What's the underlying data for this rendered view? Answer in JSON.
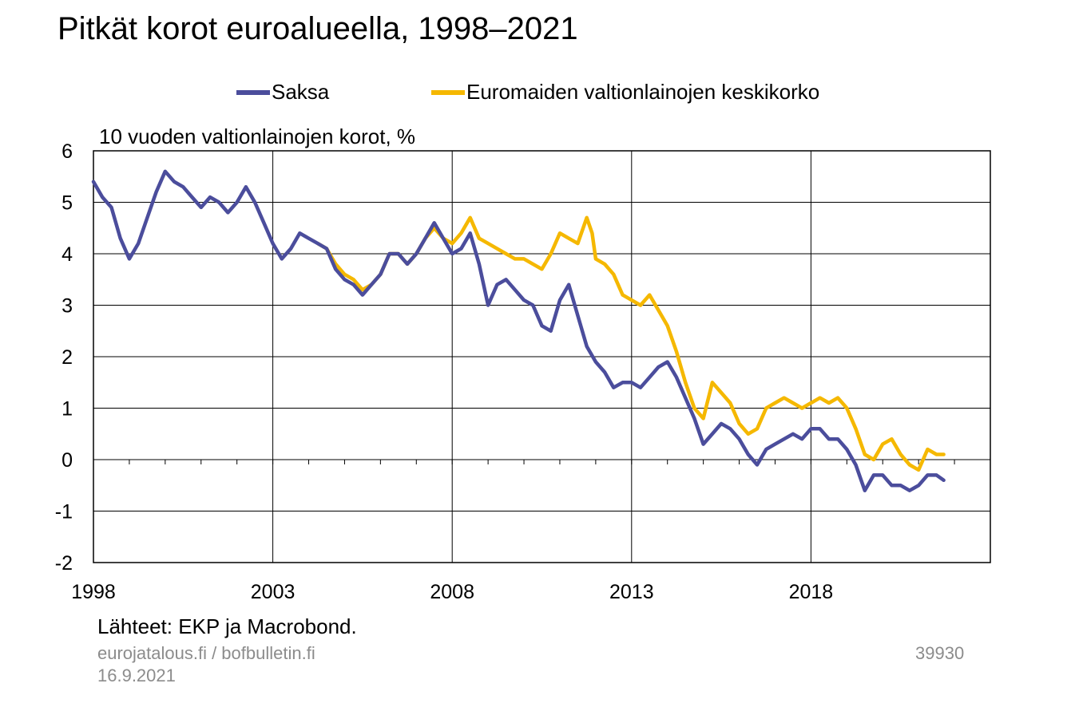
{
  "title": "Pitkät korot euroalueella, 1998–2021",
  "unit_label": "10 vuoden valtionlainojen korot, %",
  "source": "Lähteet: EKP ja Macrobond.",
  "footer": {
    "site": "eurojatalous.fi / bofbulletin.fi",
    "date": "16.9.2021",
    "id": "39930"
  },
  "colors": {
    "saksa": "#4b4d9c",
    "euro": "#f5b800",
    "grid": "#000000"
  },
  "chart_data": {
    "type": "line",
    "title": "Pitkät korot euroalueella, 1998–2021",
    "ylabel": "10 vuoden valtionlainojen korot, %",
    "xlim": [
      1998.0,
      2023.0
    ],
    "ylim": [
      -2,
      6
    ],
    "yticks": [
      "6",
      "5",
      "4",
      "3",
      "2",
      "1",
      "0",
      "-1",
      "-2"
    ],
    "xticks": [
      "1998",
      "2003",
      "2008",
      "2013",
      "2018"
    ],
    "grid": true,
    "legend_position": "top",
    "series": [
      {
        "name": "Saksa",
        "color": "#4b4d9c",
        "x": [
          1998.0,
          1998.25,
          1998.5,
          1998.75,
          1999.0,
          1999.25,
          1999.5,
          1999.75,
          2000.0,
          2000.25,
          2000.5,
          2000.75,
          2001.0,
          2001.25,
          2001.5,
          2001.75,
          2002.0,
          2002.25,
          2002.5,
          2002.75,
          2003.0,
          2003.25,
          2003.5,
          2003.75,
          2004.0,
          2004.25,
          2004.5,
          2004.75,
          2005.0,
          2005.25,
          2005.5,
          2005.75,
          2006.0,
          2006.25,
          2006.5,
          2006.75,
          2007.0,
          2007.25,
          2007.5,
          2007.75,
          2008.0,
          2008.25,
          2008.5,
          2008.75,
          2009.0,
          2009.25,
          2009.5,
          2009.75,
          2010.0,
          2010.25,
          2010.5,
          2010.75,
          2011.0,
          2011.25,
          2011.5,
          2011.75,
          2012.0,
          2012.25,
          2012.5,
          2012.75,
          2013.0,
          2013.25,
          2013.5,
          2013.75,
          2014.0,
          2014.25,
          2014.5,
          2014.75,
          2015.0,
          2015.25,
          2015.5,
          2015.75,
          2016.0,
          2016.25,
          2016.5,
          2016.75,
          2017.0,
          2017.25,
          2017.5,
          2017.75,
          2018.0,
          2018.25,
          2018.5,
          2018.75,
          2019.0,
          2019.25,
          2019.5,
          2019.75,
          2020.0,
          2020.25,
          2020.5,
          2020.75,
          2021.0,
          2021.25,
          2021.5,
          2021.7
        ],
        "y": [
          5.4,
          5.1,
          4.9,
          4.3,
          3.9,
          4.2,
          4.7,
          5.2,
          5.6,
          5.4,
          5.3,
          5.1,
          4.9,
          5.1,
          5.0,
          4.8,
          5.0,
          5.3,
          5.0,
          4.6,
          4.2,
          3.9,
          4.1,
          4.4,
          4.3,
          4.2,
          4.1,
          3.7,
          3.5,
          3.4,
          3.2,
          3.4,
          3.6,
          4.0,
          4.0,
          3.8,
          4.0,
          4.3,
          4.6,
          4.3,
          4.0,
          4.1,
          4.4,
          3.8,
          3.0,
          3.4,
          3.5,
          3.3,
          3.1,
          3.0,
          2.6,
          2.5,
          3.1,
          3.4,
          2.8,
          2.2,
          1.9,
          1.7,
          1.4,
          1.5,
          1.5,
          1.4,
          1.6,
          1.8,
          1.9,
          1.6,
          1.2,
          0.8,
          0.3,
          0.5,
          0.7,
          0.6,
          0.4,
          0.1,
          -0.1,
          0.2,
          0.3,
          0.4,
          0.5,
          0.4,
          0.6,
          0.6,
          0.4,
          0.4,
          0.2,
          -0.1,
          -0.6,
          -0.3,
          -0.3,
          -0.5,
          -0.5,
          -0.6,
          -0.5,
          -0.3,
          -0.3,
          -0.4
        ]
      },
      {
        "name": "Euromaiden valtionlainojen keskikorko",
        "color": "#f5b800",
        "x": [
          2004.25,
          2004.5,
          2004.75,
          2005.0,
          2005.25,
          2005.5,
          2005.75,
          2006.0,
          2006.25,
          2006.5,
          2006.75,
          2007.0,
          2007.25,
          2007.5,
          2007.75,
          2008.0,
          2008.25,
          2008.5,
          2008.75,
          2009.0,
          2009.25,
          2009.5,
          2009.75,
          2010.0,
          2010.25,
          2010.5,
          2010.75,
          2011.0,
          2011.25,
          2011.5,
          2011.75,
          2011.9,
          2012.0,
          2012.25,
          2012.5,
          2012.75,
          2013.0,
          2013.25,
          2013.5,
          2013.75,
          2014.0,
          2014.25,
          2014.5,
          2014.75,
          2015.0,
          2015.25,
          2015.5,
          2015.75,
          2016.0,
          2016.25,
          2016.5,
          2016.75,
          2017.0,
          2017.25,
          2017.5,
          2017.75,
          2018.0,
          2018.25,
          2018.5,
          2018.75,
          2019.0,
          2019.25,
          2019.5,
          2019.75,
          2020.0,
          2020.25,
          2020.5,
          2020.75,
          2021.0,
          2021.25,
          2021.5,
          2021.7
        ],
        "y": [
          4.2,
          4.1,
          3.8,
          3.6,
          3.5,
          3.3,
          3.4,
          3.6,
          4.0,
          4.0,
          3.8,
          4.0,
          4.3,
          4.5,
          4.3,
          4.2,
          4.4,
          4.7,
          4.3,
          4.2,
          4.1,
          4.0,
          3.9,
          3.9,
          3.8,
          3.7,
          4.0,
          4.4,
          4.3,
          4.2,
          4.7,
          4.4,
          3.9,
          3.8,
          3.6,
          3.2,
          3.1,
          3.0,
          3.2,
          2.9,
          2.6,
          2.1,
          1.5,
          1.0,
          0.8,
          1.5,
          1.3,
          1.1,
          0.7,
          0.5,
          0.6,
          1.0,
          1.1,
          1.2,
          1.1,
          1.0,
          1.1,
          1.2,
          1.1,
          1.2,
          1.0,
          0.6,
          0.1,
          0.0,
          0.3,
          0.4,
          0.1,
          -0.1,
          -0.2,
          0.2,
          0.1,
          0.1
        ]
      }
    ]
  }
}
